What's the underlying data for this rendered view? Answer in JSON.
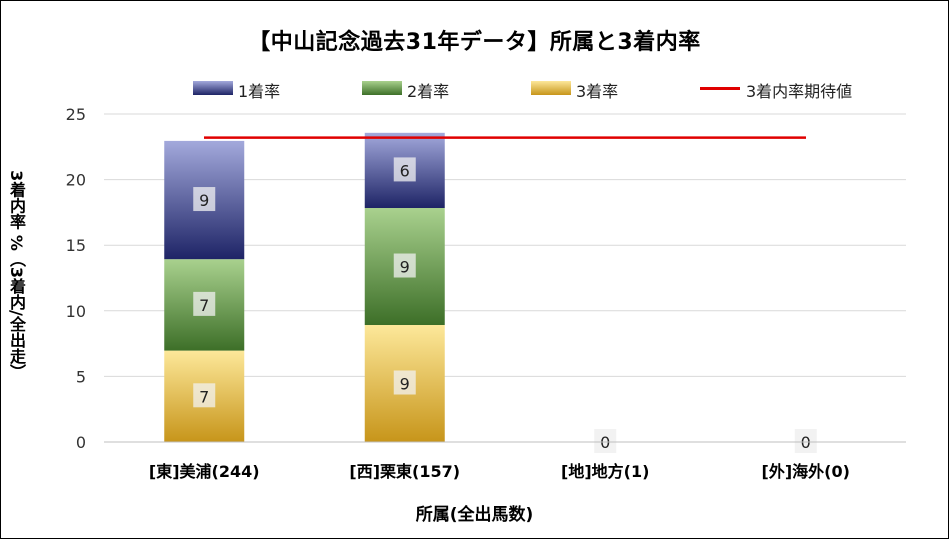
{
  "chart_data": {
    "type": "bar",
    "stacked": true,
    "title": "【中山記念過去31年データ】所属と3着内率",
    "xlabel": "所属(全出馬数)",
    "ylabel": "3着内率 %（3着内/全出走）",
    "categories": [
      "[東]美浦(244)",
      "[西]栗東(157)",
      "[地]地方(1)",
      "[外]海外(0)"
    ],
    "ylim": [
      0,
      25
    ],
    "yticks": [
      0,
      5,
      10,
      15,
      20,
      25
    ],
    "series": [
      {
        "name": "3着率",
        "values": [
          6.967,
          8.917,
          0,
          0
        ],
        "labels": [
          "7",
          "9",
          "0",
          "0"
        ],
        "color_top": "#fde89a",
        "color_bottom": "#c7951a"
      },
      {
        "name": "2着率",
        "values": [
          6.967,
          8.917,
          0,
          0
        ],
        "labels": [
          "7",
          "9",
          "",
          ""
        ],
        "color_top": "#a9d18e",
        "color_bottom": "#3d6f28"
      },
      {
        "name": "1着率",
        "values": [
          9.016,
          5.732,
          0,
          0
        ],
        "labels": [
          "9",
          "6",
          "",
          ""
        ],
        "color_top": "#a3a9dc",
        "color_bottom": "#1e2466"
      }
    ],
    "reference_line": {
      "name": "3着内率期待値",
      "value": 23.2,
      "color": "#e00000"
    },
    "grid": true,
    "legend_position": "top"
  },
  "legend": {
    "s1": "1着率",
    "s2": "2着率",
    "s3": "3着率",
    "ref": "3着内率期待値"
  }
}
